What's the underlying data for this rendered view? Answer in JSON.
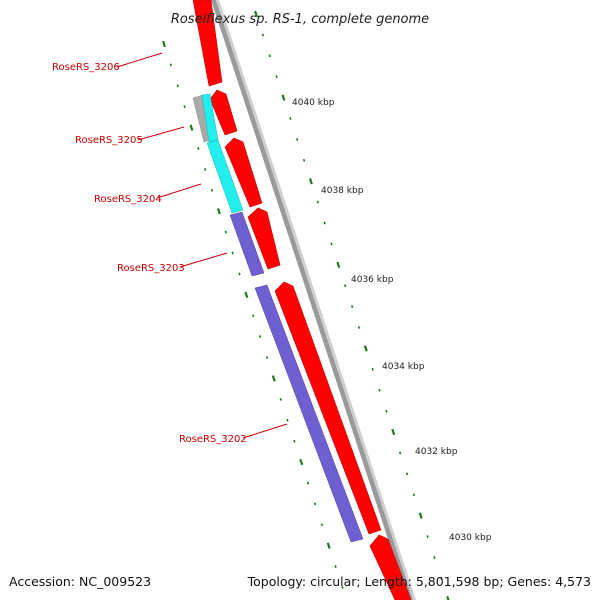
{
  "title": "Roseiflexus sp. RS-1, complete genome",
  "accession": "Accession: NC_009523",
  "summary": "Topology: circular; Length: 5,801,598 bp; Genes: 4,573",
  "colors": {
    "cds_forward": "#ff0000",
    "gene_label": "#cc0000",
    "backbone": "#999999",
    "tick": "#1f7a1f",
    "gene_purple": "#6f5fd0",
    "gene_cyan": "#22eeee",
    "gene_gray": "#aaaaaa"
  },
  "genes": [
    {
      "id": "RoseRS_3206",
      "label": "RoseRS_3206"
    },
    {
      "id": "RoseRS_3205",
      "label": "RoseRS_3205"
    },
    {
      "id": "RoseRS_3204",
      "label": "RoseRS_3204"
    },
    {
      "id": "RoseRS_3203",
      "label": "RoseRS_3203"
    },
    {
      "id": "RoseRS_3202",
      "label": "RoseRS_3202"
    }
  ],
  "kbp_ticks": [
    {
      "label": "4040 kbp"
    },
    {
      "label": "4038 kbp"
    },
    {
      "label": "4036 kbp"
    },
    {
      "label": "4034 kbp"
    },
    {
      "label": "4032 kbp"
    },
    {
      "label": "4030 kbp"
    }
  ]
}
